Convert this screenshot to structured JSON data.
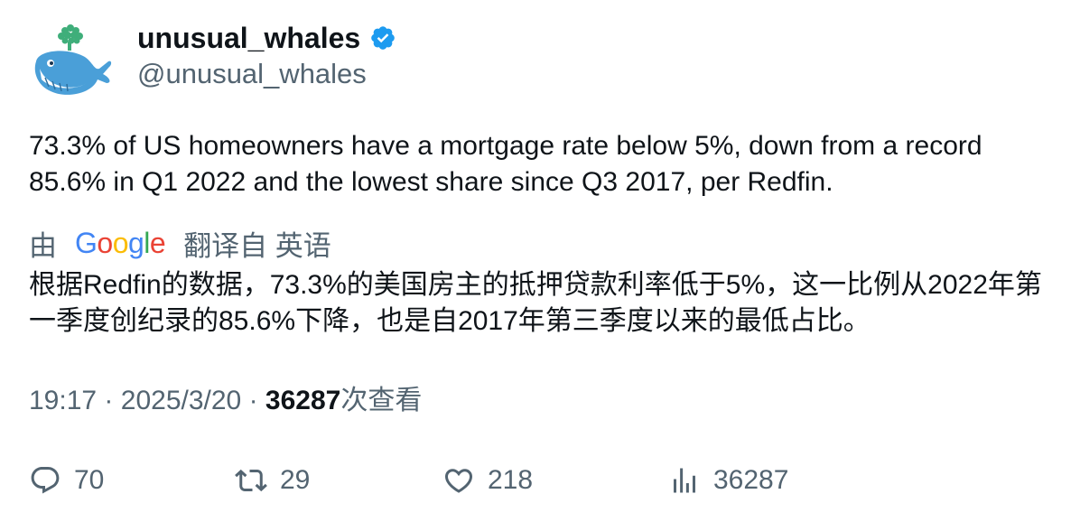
{
  "author": {
    "display_name": "unusual_whales",
    "handle": "@unusual_whales",
    "verified_color": "#1d9bf0",
    "avatar_icon": "whale-logo-icon"
  },
  "tweet": {
    "text": "73.3% of US homeowners have a mortgage rate below 5%, down from a record 85.6% in Q1 2022 and the lowest share since Q3 2017, per Redfin."
  },
  "translation": {
    "by_label": "由",
    "provider": "Google",
    "from_label": "翻译自 英语",
    "text": "根据Redfin的数据，73.3%的美国房主的抵押贷款利率低于5%，这一比例从2022年第一季度创纪录的85.6%下降，也是自2017年第三季度以来的最低占比。"
  },
  "meta": {
    "time": "19:17",
    "sep1": "·",
    "date": "2025/3/20",
    "sep2": "·",
    "views_count": "36287",
    "views_label": "次查看"
  },
  "actions": {
    "replies": "70",
    "retweets": "29",
    "likes": "218",
    "views": "36287"
  },
  "colors": {
    "text": "#0f1419",
    "secondary": "#536471",
    "google_blue": "#4285F4",
    "google_red": "#EA4335",
    "google_yellow": "#FBBC05",
    "google_green": "#34A853"
  }
}
